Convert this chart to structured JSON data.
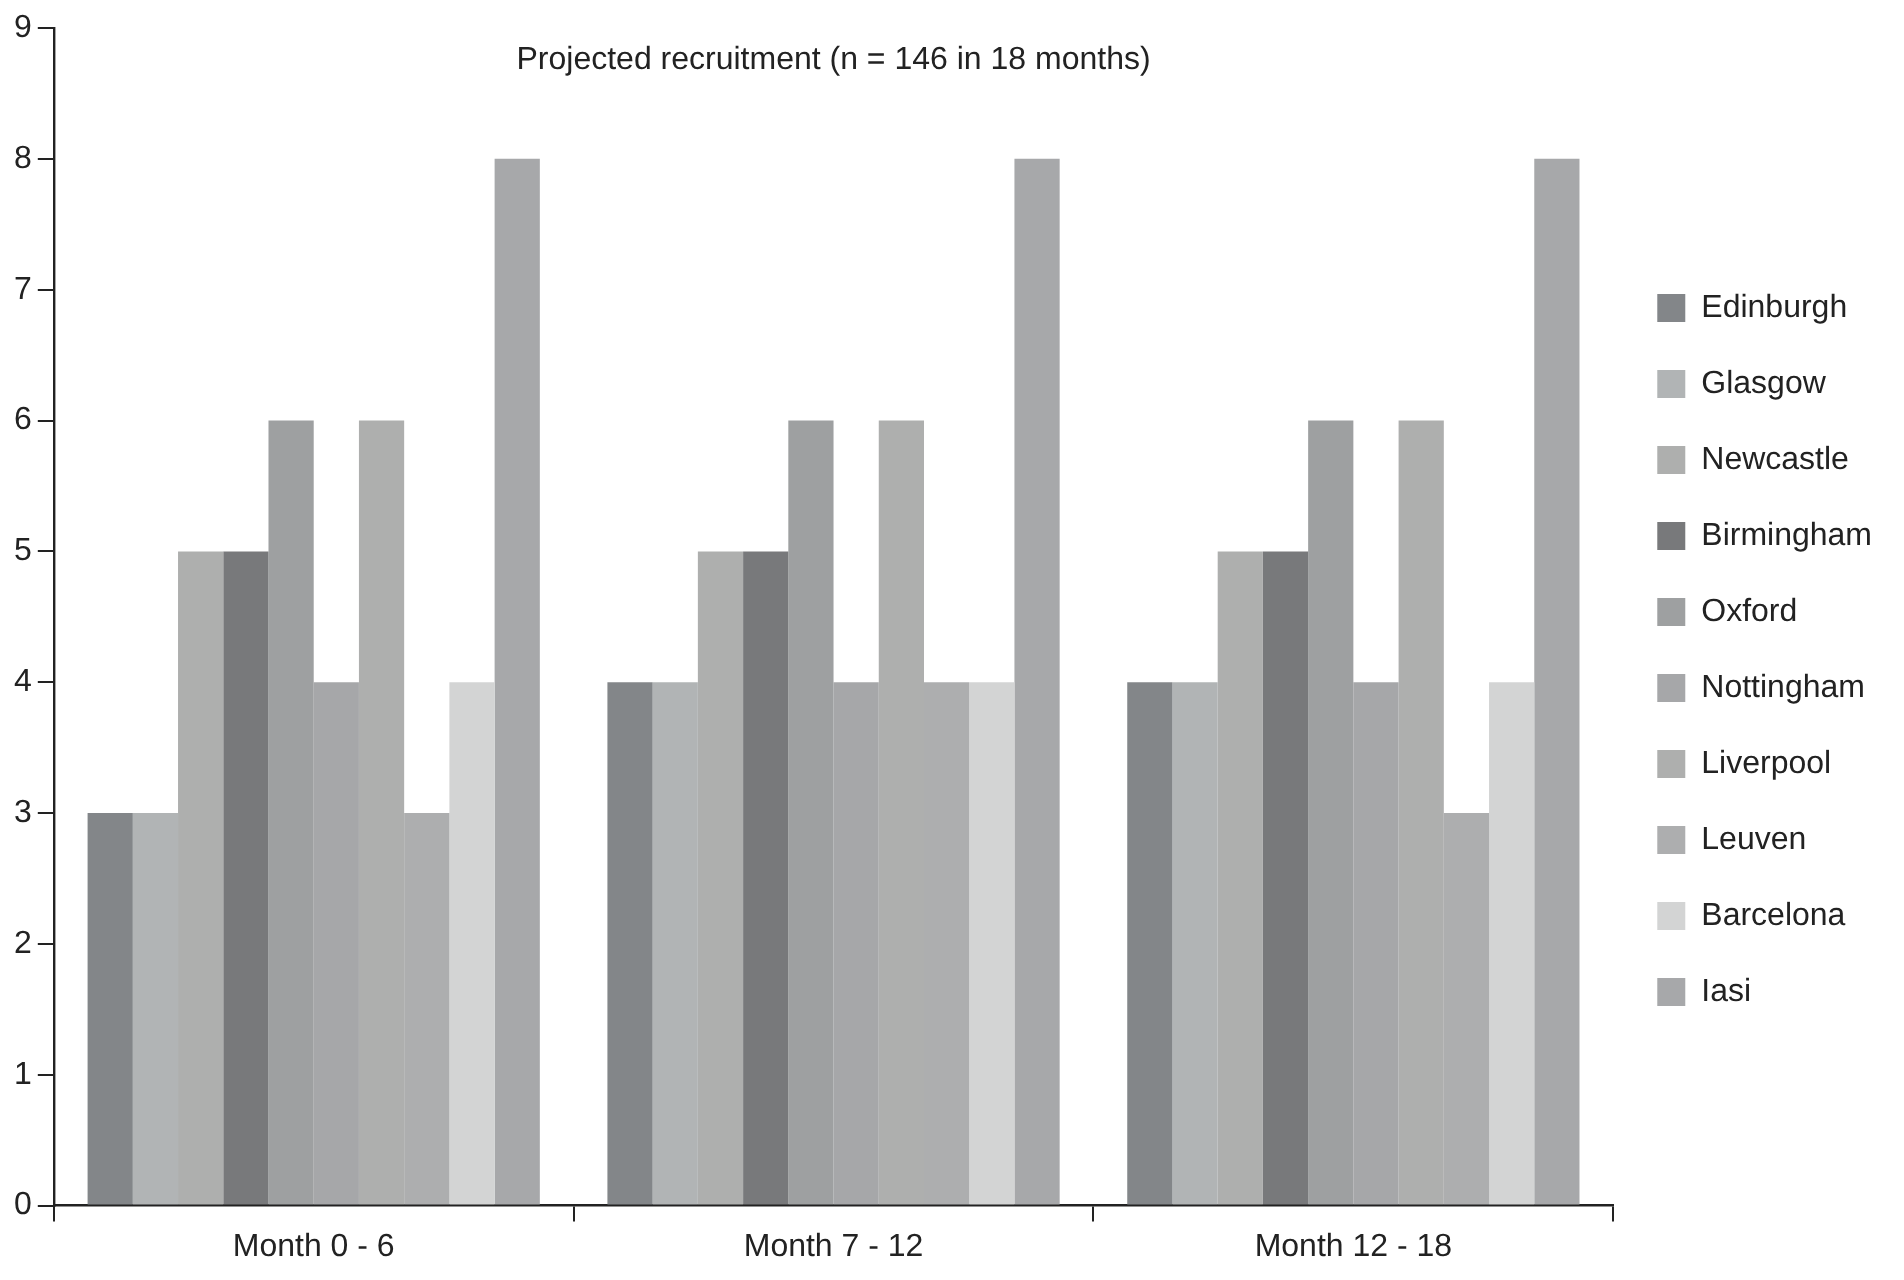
{
  "chart_data": {
    "type": "bar",
    "title": "Projected recruitment (n = 146 in 18 months)",
    "categories": [
      "Month 0 - 6",
      "Month 7 - 12",
      "Month 12 - 18"
    ],
    "series": [
      {
        "name": "Edinburgh",
        "color": "#838689",
        "values": [
          3,
          4,
          4
        ]
      },
      {
        "name": "Glasgow",
        "color": "#b1b4b5",
        "values": [
          3,
          4,
          4
        ]
      },
      {
        "name": "Newcastle",
        "color": "#aeafae",
        "values": [
          5,
          5,
          5
        ]
      },
      {
        "name": "Birmingham",
        "color": "#78797b",
        "values": [
          5,
          5,
          5
        ]
      },
      {
        "name": "Oxford",
        "color": "#9ea0a1",
        "values": [
          6,
          6,
          6
        ]
      },
      {
        "name": "Nottingham",
        "color": "#a6a7a9",
        "values": [
          4,
          4,
          4
        ]
      },
      {
        "name": "Liverpool",
        "color": "#aeafae",
        "values": [
          6,
          6,
          6
        ]
      },
      {
        "name": "Leuven",
        "color": "#adaeaf",
        "values": [
          3,
          4,
          3
        ]
      },
      {
        "name": "Barcelona",
        "color": "#d3d4d4",
        "values": [
          4,
          4,
          4
        ]
      },
      {
        "name": "Iasi",
        "color": "#a7a8aa",
        "values": [
          8,
          8,
          8
        ]
      }
    ],
    "ylim": [
      0,
      9
    ],
    "yticks": [
      0,
      1,
      2,
      3,
      4,
      5,
      6,
      7,
      8,
      9
    ],
    "grid": false,
    "legend": "right"
  }
}
